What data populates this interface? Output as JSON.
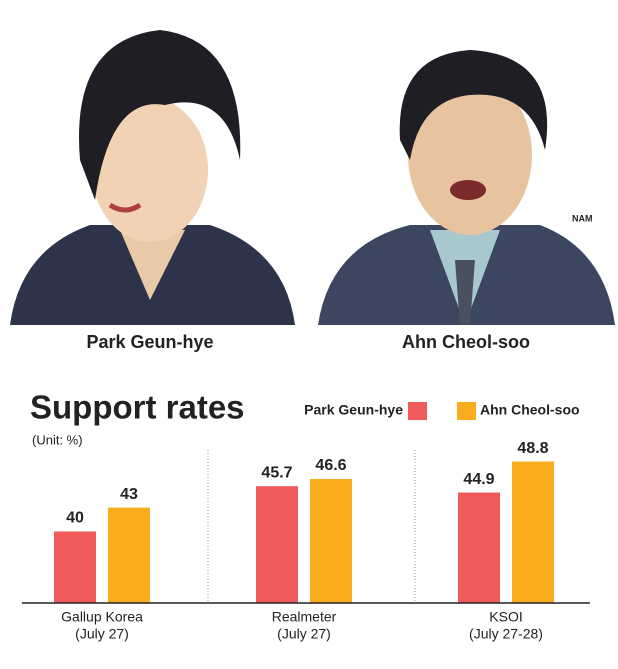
{
  "portraits": [
    {
      "name": "Park Geun-hye"
    },
    {
      "name": "Ahn Cheol-soo"
    }
  ],
  "signature": "NAM",
  "chart_data": {
    "type": "bar",
    "title": "Support rates",
    "subtitle": "(Unit: %)",
    "categories": [
      "Gallup Korea",
      "Realmeter",
      "KSOI"
    ],
    "category_notes": [
      "(July 27)",
      "(July 27)",
      "(July 27-28)"
    ],
    "series": [
      {
        "name": "Park Geun-hye",
        "color": "#f05a5b",
        "values": [
          40,
          45.7,
          44.9
        ]
      },
      {
        "name": "Ahn Cheol-soo",
        "color": "#f8ac1e",
        "values": [
          43,
          46.6,
          48.8
        ]
      }
    ],
    "ylim": [
      31,
      50
    ]
  }
}
